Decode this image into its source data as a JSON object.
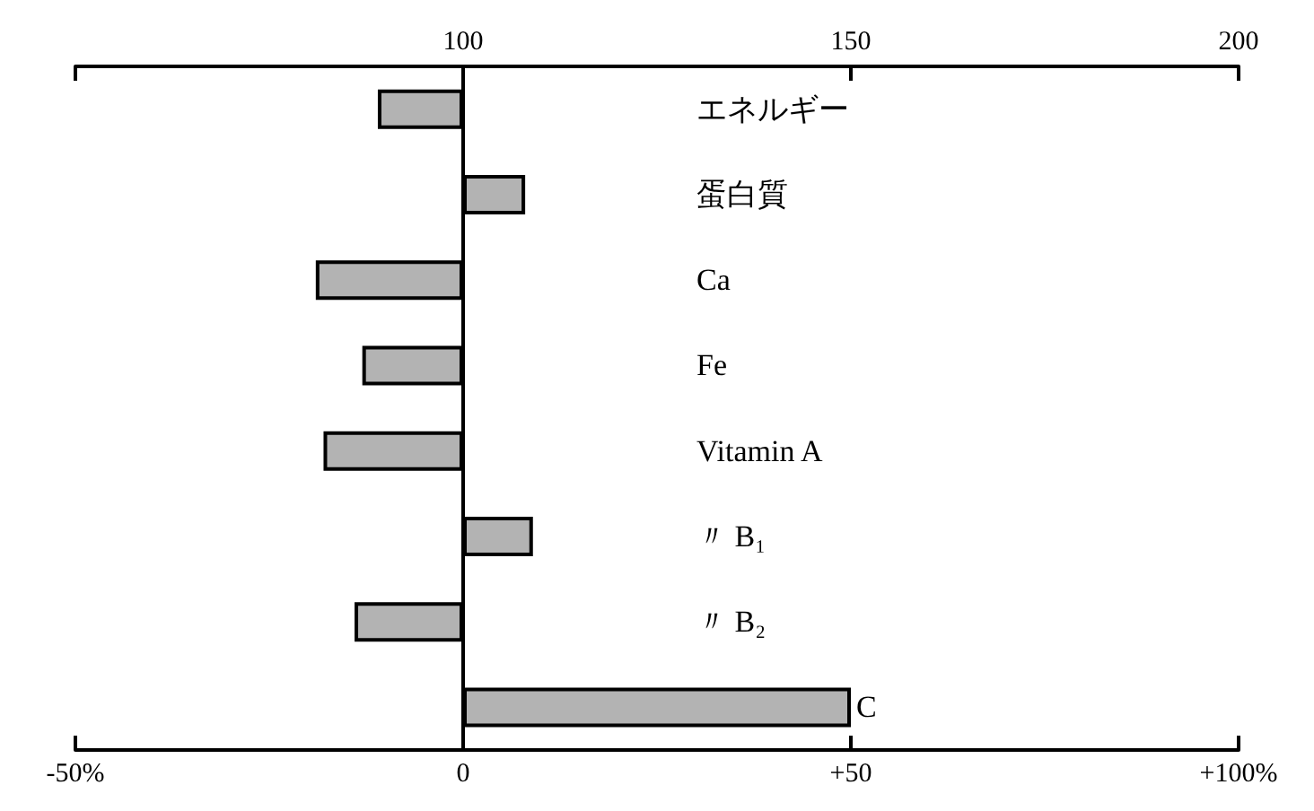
{
  "chart_data": {
    "type": "bar",
    "orientation": "horizontal",
    "categories": [
      "エネルギー",
      "蛋白質",
      "Ca",
      "Fe",
      "Vitamin A",
      "〃 B₁",
      "〃 B₂",
      "C"
    ],
    "values": [
      -11,
      8,
      -19,
      -13,
      -18,
      9,
      -14,
      50
    ],
    "color": "#b3b3b3",
    "xlim": [
      -50,
      100
    ],
    "xticks": [
      {
        "value": -50,
        "label": "-50%"
      },
      0,
      {
        "value": 50,
        "label": "+50"
      },
      {
        "value": 100,
        "label": "+100%"
      }
    ],
    "x2lim": [
      50,
      200
    ],
    "x2ticks": [
      {
        "value": 50,
        "label": null
      },
      100,
      150,
      200
    ]
  }
}
